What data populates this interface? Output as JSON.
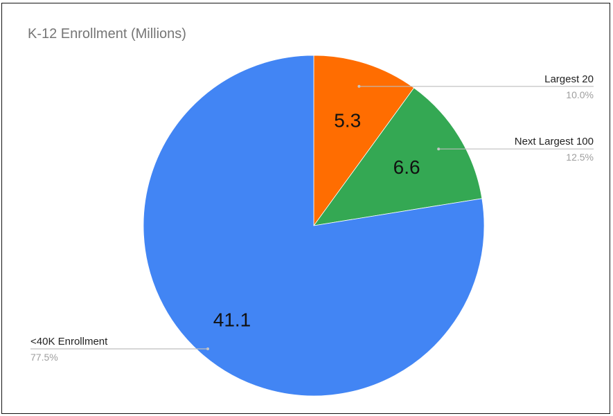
{
  "chart_data": {
    "type": "pie",
    "title": "K-12 Enrollment (Millions)",
    "slices": [
      {
        "label": "Largest 20",
        "value": 5.3,
        "value_label": "5.3",
        "percent_label": "10.0%",
        "color": "#ff6d01",
        "label_side": "right"
      },
      {
        "label": "Next Largest 100",
        "value": 6.6,
        "value_label": "6.6",
        "percent_label": "12.5%",
        "color": "#34a853",
        "label_side": "right"
      },
      {
        "label": "<40K Enrollment",
        "value": 41.1,
        "value_label": "41.1",
        "percent_label": "77.5%",
        "color": "#4285f4",
        "label_side": "left"
      }
    ],
    "start_angle": "top",
    "direction": "clockwise",
    "legend": "callout labels"
  }
}
